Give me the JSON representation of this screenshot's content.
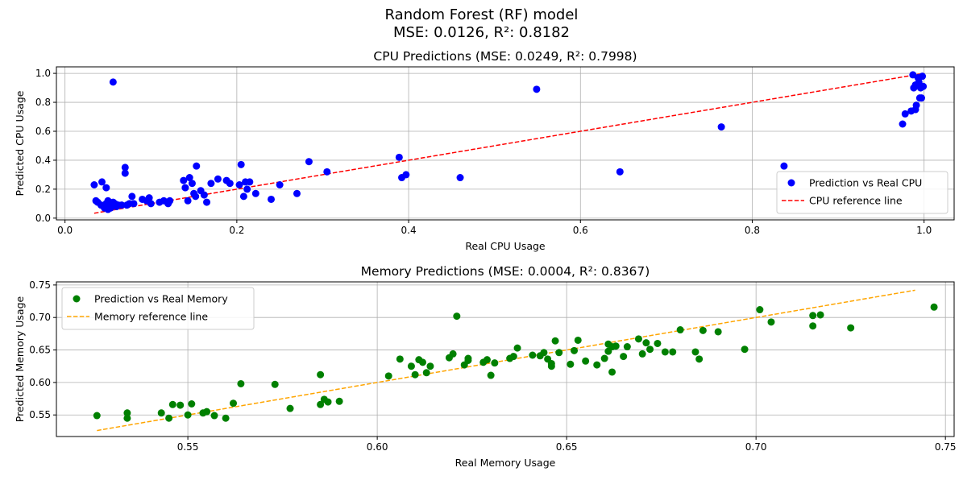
{
  "figure": {
    "title_line1": "Random Forest (RF) model",
    "title_line2": "MSE: 0.0126, R²: 0.8182"
  },
  "chart_data": [
    {
      "type": "scatter",
      "title": "CPU Predictions (MSE: 0.0249, R²: 0.7998)",
      "xlabel": "Real CPU Usage",
      "ylabel": "Predicted CPU Usage",
      "xlim": [
        -0.01,
        1.035
      ],
      "ylim": [
        -0.012,
        1.045
      ],
      "xticks": [
        0.0,
        0.2,
        0.4,
        0.6,
        0.8,
        1.0
      ],
      "xtick_labels": [
        "0.0",
        "0.2",
        "0.4",
        "0.6",
        "0.8",
        "1.0"
      ],
      "yticks": [
        0.0,
        0.2,
        0.4,
        0.6,
        0.8,
        1.0
      ],
      "ytick_labels": [
        "0.0",
        "0.2",
        "0.4",
        "0.6",
        "0.8",
        "1.0"
      ],
      "grid": true,
      "legend_position": "lower right",
      "colors": {
        "points": "#0000ff",
        "reference": "#ff0000"
      },
      "series": [
        {
          "name": "Prediction vs Real CPU",
          "kind": "scatter",
          "points": [
            [
              0.034,
              0.23
            ],
            [
              0.036,
              0.12
            ],
            [
              0.038,
              0.11
            ],
            [
              0.042,
              0.09
            ],
            [
              0.043,
              0.25
            ],
            [
              0.045,
              0.08
            ],
            [
              0.046,
              0.07
            ],
            [
              0.048,
              0.21
            ],
            [
              0.048,
              0.1
            ],
            [
              0.05,
              0.06
            ],
            [
              0.05,
              0.12
            ],
            [
              0.052,
              0.09
            ],
            [
              0.053,
              0.07
            ],
            [
              0.055,
              0.08
            ],
            [
              0.056,
              0.94
            ],
            [
              0.056,
              0.11
            ],
            [
              0.058,
              0.1
            ],
            [
              0.06,
              0.08
            ],
            [
              0.062,
              0.09
            ],
            [
              0.066,
              0.09
            ],
            [
              0.07,
              0.35
            ],
            [
              0.07,
              0.31
            ],
            [
              0.072,
              0.09
            ],
            [
              0.075,
              0.1
            ],
            [
              0.078,
              0.15
            ],
            [
              0.08,
              0.1
            ],
            [
              0.09,
              0.13
            ],
            [
              0.095,
              0.12
            ],
            [
              0.098,
              0.14
            ],
            [
              0.1,
              0.1
            ],
            [
              0.11,
              0.11
            ],
            [
              0.115,
              0.12
            ],
            [
              0.12,
              0.1
            ],
            [
              0.122,
              0.12
            ],
            [
              0.138,
              0.26
            ],
            [
              0.14,
              0.21
            ],
            [
              0.143,
              0.12
            ],
            [
              0.145,
              0.28
            ],
            [
              0.148,
              0.24
            ],
            [
              0.15,
              0.17
            ],
            [
              0.152,
              0.15
            ],
            [
              0.153,
              0.36
            ],
            [
              0.158,
              0.19
            ],
            [
              0.162,
              0.16
            ],
            [
              0.165,
              0.11
            ],
            [
              0.17,
              0.24
            ],
            [
              0.178,
              0.27
            ],
            [
              0.188,
              0.26
            ],
            [
              0.192,
              0.24
            ],
            [
              0.203,
              0.23
            ],
            [
              0.205,
              0.37
            ],
            [
              0.208,
              0.15
            ],
            [
              0.21,
              0.25
            ],
            [
              0.212,
              0.2
            ],
            [
              0.215,
              0.25
            ],
            [
              0.222,
              0.17
            ],
            [
              0.24,
              0.13
            ],
            [
              0.25,
              0.23
            ],
            [
              0.27,
              0.17
            ],
            [
              0.284,
              0.39
            ],
            [
              0.305,
              0.32
            ],
            [
              0.389,
              0.42
            ],
            [
              0.392,
              0.28
            ],
            [
              0.397,
              0.3
            ],
            [
              0.46,
              0.28
            ],
            [
              0.549,
              0.89
            ],
            [
              0.646,
              0.32
            ],
            [
              0.764,
              0.63
            ],
            [
              0.837,
              0.36
            ],
            [
              0.975,
              0.65
            ],
            [
              0.978,
              0.72
            ],
            [
              0.985,
              0.74
            ],
            [
              0.987,
              0.99
            ],
            [
              0.988,
              0.9
            ],
            [
              0.99,
              0.75
            ],
            [
              0.99,
              0.92
            ],
            [
              0.991,
              0.78
            ],
            [
              0.993,
              0.97
            ],
            [
              0.994,
              0.94
            ],
            [
              0.995,
              0.83
            ],
            [
              0.996,
              0.9
            ],
            [
              0.997,
              0.83
            ],
            [
              0.998,
              0.98
            ],
            [
              0.999,
              0.91
            ]
          ]
        },
        {
          "name": "CPU reference line",
          "kind": "line",
          "x": [
            0.034,
            0.999
          ],
          "y": [
            0.034,
            0.999
          ]
        }
      ]
    },
    {
      "type": "scatter",
      "title": "Memory Predictions (MSE: 0.0004, R²: 0.8367)",
      "xlabel": "Real Memory Usage",
      "ylabel": "Predicted Memory Usage",
      "xlim": [
        0.5153,
        0.7523
      ],
      "ylim": [
        0.5168,
        0.7548
      ],
      "xticks": [
        0.55,
        0.6,
        0.65,
        0.7,
        0.75
      ],
      "xtick_labels": [
        "0.55",
        "0.60",
        "0.65",
        "0.70",
        "0.75"
      ],
      "yticks": [
        0.55,
        0.6,
        0.65,
        0.7,
        0.75
      ],
      "ytick_labels": [
        "0.55",
        "0.60",
        "0.65",
        "0.70",
        "0.75"
      ],
      "grid": true,
      "legend_position": "upper left",
      "colors": {
        "points": "#008000",
        "reference": "#ffa500"
      },
      "series": [
        {
          "name": "Prediction vs Real Memory",
          "kind": "scatter",
          "points": [
            [
              0.526,
              0.549
            ],
            [
              0.534,
              0.553
            ],
            [
              0.534,
              0.545
            ],
            [
              0.543,
              0.553
            ],
            [
              0.545,
              0.545
            ],
            [
              0.546,
              0.566
            ],
            [
              0.548,
              0.565
            ],
            [
              0.55,
              0.55
            ],
            [
              0.551,
              0.567
            ],
            [
              0.554,
              0.553
            ],
            [
              0.555,
              0.555
            ],
            [
              0.557,
              0.549
            ],
            [
              0.56,
              0.545
            ],
            [
              0.562,
              0.568
            ],
            [
              0.564,
              0.598
            ],
            [
              0.573,
              0.597
            ],
            [
              0.577,
              0.56
            ],
            [
              0.585,
              0.612
            ],
            [
              0.585,
              0.566
            ],
            [
              0.586,
              0.574
            ],
            [
              0.587,
              0.57
            ],
            [
              0.59,
              0.571
            ],
            [
              0.603,
              0.61
            ],
            [
              0.606,
              0.636
            ],
            [
              0.609,
              0.625
            ],
            [
              0.61,
              0.612
            ],
            [
              0.611,
              0.635
            ],
            [
              0.612,
              0.631
            ],
            [
              0.613,
              0.615
            ],
            [
              0.614,
              0.625
            ],
            [
              0.619,
              0.638
            ],
            [
              0.62,
              0.644
            ],
            [
              0.621,
              0.702
            ],
            [
              0.623,
              0.627
            ],
            [
              0.624,
              0.634
            ],
            [
              0.624,
              0.637
            ],
            [
              0.628,
              0.631
            ],
            [
              0.629,
              0.635
            ],
            [
              0.63,
              0.611
            ],
            [
              0.631,
              0.63
            ],
            [
              0.635,
              0.637
            ],
            [
              0.636,
              0.64
            ],
            [
              0.637,
              0.653
            ],
            [
              0.641,
              0.642
            ],
            [
              0.643,
              0.641
            ],
            [
              0.644,
              0.646
            ],
            [
              0.645,
              0.636
            ],
            [
              0.646,
              0.625
            ],
            [
              0.646,
              0.629
            ],
            [
              0.647,
              0.664
            ],
            [
              0.648,
              0.646
            ],
            [
              0.651,
              0.628
            ],
            [
              0.652,
              0.649
            ],
            [
              0.653,
              0.665
            ],
            [
              0.655,
              0.633
            ],
            [
              0.658,
              0.627
            ],
            [
              0.66,
              0.637
            ],
            [
              0.661,
              0.648
            ],
            [
              0.661,
              0.659
            ],
            [
              0.662,
              0.655
            ],
            [
              0.662,
              0.616
            ],
            [
              0.663,
              0.656
            ],
            [
              0.665,
              0.64
            ],
            [
              0.666,
              0.655
            ],
            [
              0.669,
              0.667
            ],
            [
              0.67,
              0.644
            ],
            [
              0.671,
              0.661
            ],
            [
              0.672,
              0.651
            ],
            [
              0.674,
              0.66
            ],
            [
              0.676,
              0.647
            ],
            [
              0.678,
              0.647
            ],
            [
              0.68,
              0.681
            ],
            [
              0.684,
              0.647
            ],
            [
              0.685,
              0.636
            ],
            [
              0.686,
              0.68
            ],
            [
              0.69,
              0.678
            ],
            [
              0.697,
              0.651
            ],
            [
              0.701,
              0.712
            ],
            [
              0.704,
              0.693
            ],
            [
              0.715,
              0.687
            ],
            [
              0.715,
              0.703
            ],
            [
              0.717,
              0.704
            ],
            [
              0.725,
              0.684
            ],
            [
              0.747,
              0.716
            ]
          ]
        },
        {
          "name": "Memory reference line",
          "kind": "line",
          "x": [
            0.526,
            0.742
          ],
          "y": [
            0.526,
            0.742
          ]
        }
      ]
    }
  ]
}
